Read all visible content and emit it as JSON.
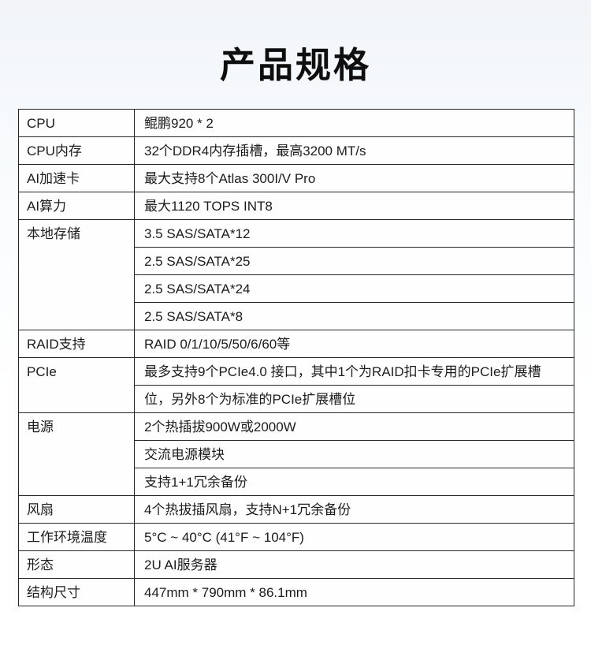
{
  "page": {
    "title": "产品规格"
  },
  "colors": {
    "border": "#262626",
    "text": "#1c1c1c",
    "background_top": "#f1f4f8",
    "background_bottom": "#ffffff",
    "title_text": "#0e0e0e"
  },
  "table": {
    "rows": [
      {
        "label": "CPU",
        "values": [
          "鲲鹏920 * 2"
        ]
      },
      {
        "label": "CPU内存",
        "values": [
          "32个DDR4内存插槽，最高3200 MT/s"
        ]
      },
      {
        "label": "AI加速卡",
        "values": [
          "最大支持8个Atlas 300I/V Pro"
        ]
      },
      {
        "label": "AI算力",
        "values": [
          "最大1120 TOPS INT8"
        ]
      },
      {
        "label": "本地存储",
        "values": [
          "3.5 SAS/SATA*12",
          "2.5 SAS/SATA*25",
          "2.5 SAS/SATA*24",
          "2.5 SAS/SATA*8"
        ]
      },
      {
        "label": "RAID支持",
        "values": [
          "RAID 0/1/10/5/50/6/60等"
        ]
      },
      {
        "label": "PCIe",
        "values": [
          "最多支持9个PCIe4.0 接口，其中1个为RAID扣卡专用的PCIe扩展槽",
          "位，另外8个为标准的PCIe扩展槽位"
        ]
      },
      {
        "label": "电源",
        "values": [
          "2个热插拔900W或2000W",
          "交流电源模块",
          "支持1+1冗余备份"
        ]
      },
      {
        "label": "风扇",
        "values": [
          "4个热拔插风扇，支持N+1冗余备份"
        ]
      },
      {
        "label": "工作环境温度",
        "values": [
          "5°C ~ 40°C (41°F ~ 104°F)"
        ]
      },
      {
        "label": "形态",
        "values": [
          "2U AI服务器"
        ]
      },
      {
        "label": "结构尺寸",
        "values": [
          "447mm * 790mm * 86.1mm"
        ]
      }
    ]
  }
}
